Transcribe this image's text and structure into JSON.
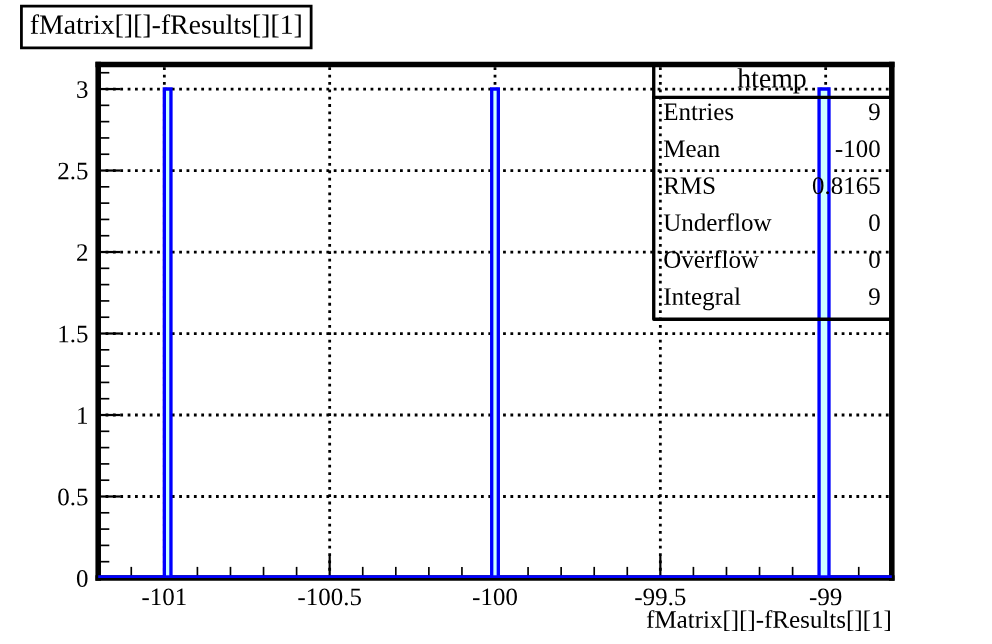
{
  "chart_data": {
    "type": "histogram",
    "title": "fMatrix[][]-fResults[][1]",
    "xlabel": "fMatrix[][]-fResults[][1]",
    "bins": [
      -101.0,
      -100.98,
      -100.01,
      -99.99,
      -99.02,
      -98.99
    ],
    "values": [
      3,
      0,
      3,
      0,
      3
    ],
    "color": "#0000ff",
    "xlim": [
      -101.2,
      -98.8
    ],
    "xticks": [
      -101,
      -100.5,
      -100,
      -99.5,
      -99
    ],
    "ylim": [
      0,
      3.15
    ],
    "yticks": [
      0,
      0.5,
      1,
      1.5,
      2,
      2.5,
      3
    ],
    "grid": true,
    "annotations": [
      "htemp",
      "Entries",
      "9",
      "Mean",
      "-100",
      "RMS",
      "0.8165",
      "Underflow",
      "0",
      "Overflow",
      "0",
      "Integral",
      "9"
    ]
  }
}
